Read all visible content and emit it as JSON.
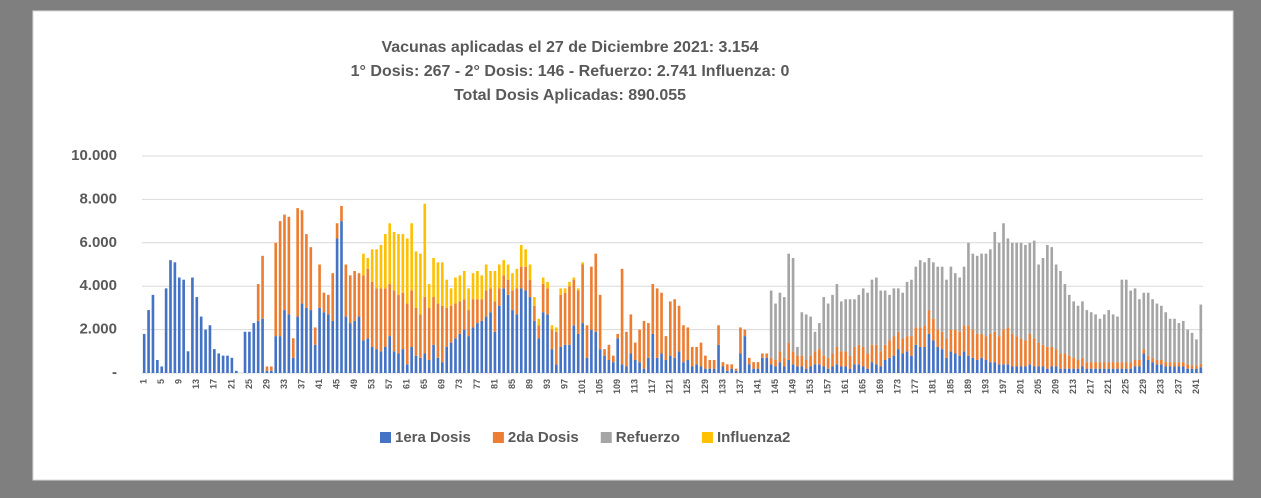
{
  "chart_data": {
    "type": "stacked_bar",
    "title_lines": [
      "Vacunas aplicadas el 27 de Diciembre 2021: 3.154",
      "1° Dosis: 267 - 2° Dosis: 146 - Refuerzo: 2.741 Influenza: 0",
      "Total Dosis Aplicadas: 890.055"
    ],
    "categories": [
      1,
      null,
      null,
      null,
      5,
      null,
      null,
      null,
      9,
      null,
      null,
      null,
      13,
      null,
      null,
      null,
      17,
      null,
      null,
      null,
      21,
      null,
      null,
      null,
      25,
      null,
      null,
      null,
      29,
      null,
      null,
      null,
      33,
      null,
      null,
      null,
      37,
      null,
      null,
      null,
      41,
      null,
      null,
      null,
      45,
      null,
      null,
      null,
      49,
      null,
      null,
      null,
      53,
      null,
      null,
      null,
      57,
      null,
      null,
      null,
      61,
      null,
      null,
      null,
      65,
      null,
      null,
      null,
      69,
      null,
      null,
      null,
      73,
      null,
      null,
      null,
      77,
      null,
      null,
      null,
      81,
      null,
      null,
      null,
      85,
      null,
      null,
      null,
      89,
      null,
      null,
      null,
      93,
      null,
      null,
      null,
      97,
      null,
      null,
      null,
      101,
      null,
      null,
      null,
      105,
      null,
      null,
      null,
      109,
      null,
      null,
      null,
      113,
      null,
      null,
      null,
      117,
      null,
      null,
      null,
      121,
      null,
      null,
      null,
      125,
      null,
      null,
      null,
      129,
      null,
      null,
      null,
      133,
      null,
      null,
      null,
      137,
      null,
      null,
      null,
      141,
      null,
      null,
      null,
      145,
      null,
      null,
      null,
      149,
      null,
      null,
      null,
      153,
      null,
      null,
      null,
      157,
      null,
      null,
      null,
      161,
      null,
      null,
      null,
      165,
      null,
      null,
      null,
      169,
      null,
      null,
      null,
      173,
      null,
      null,
      null,
      177,
      null,
      null,
      null,
      181,
      null,
      null,
      null,
      185,
      null,
      null,
      null,
      189,
      null,
      null,
      null,
      193,
      null,
      null,
      null,
      197,
      null,
      null,
      null,
      201,
      null,
      null,
      null,
      205,
      null,
      null,
      null,
      209,
      null,
      null,
      null,
      213,
      null,
      null,
      null,
      217,
      null,
      null,
      null,
      221,
      null,
      null,
      null,
      225,
      null,
      null,
      null,
      229,
      null,
      null,
      null,
      233,
      null,
      null,
      null,
      237,
      null,
      null,
      null,
      241,
      null
    ],
    "series": [
      {
        "name": "1era Dosis",
        "color": "#4472c4",
        "values": [
          1800,
          2900,
          3600,
          600,
          300,
          3900,
          5200,
          5100,
          4400,
          4300,
          1000,
          4400,
          3500,
          2600,
          2000,
          2200,
          1100,
          900,
          800,
          800,
          700,
          100,
          0,
          1900,
          1900,
          2300,
          2400,
          2500,
          100,
          100,
          1700,
          1700,
          2900,
          2700,
          700,
          2600,
          3200,
          3000,
          2900,
          1300,
          3000,
          2800,
          2700,
          2400,
          6200,
          7000,
          2600,
          2300,
          2400,
          2600,
          1500,
          1600,
          1200,
          1100,
          1000,
          1200,
          1700,
          1000,
          900,
          1100,
          400,
          1200,
          800,
          700,
          900,
          600,
          1300,
          700,
          500,
          1200,
          1400,
          1600,
          1800,
          2000,
          1700,
          2100,
          2300,
          2400,
          2600,
          2800,
          1900,
          3100,
          3900,
          3600,
          2900,
          2700,
          3900,
          3800,
          3500,
          2400,
          1600,
          2800,
          2700,
          1100,
          400,
          1200,
          1300,
          1300,
          2200,
          1800,
          2300,
          700,
          2000,
          1900,
          1100,
          800,
          600,
          500,
          1600,
          400,
          300,
          900,
          600,
          500,
          200,
          700,
          1800,
          700,
          900,
          600,
          800,
          700,
          1000,
          500,
          600,
          300,
          400,
          300,
          200,
          200,
          200,
          1300,
          300,
          100,
          200,
          100,
          900,
          1700,
          400,
          200,
          200,
          700,
          700,
          400,
          300,
          500,
          300,
          600,
          400,
          300,
          300,
          200,
          300,
          400,
          400,
          300,
          200,
          300,
          400,
          300,
          300,
          200,
          400,
          400,
          300,
          200,
          500,
          400,
          300,
          600,
          700,
          800,
          1100,
          900,
          1000,
          800,
          1300,
          1200,
          1200,
          1800,
          1500,
          1200,
          1100,
          700,
          1000,
          900,
          800,
          1000,
          800,
          700,
          600,
          700,
          600,
          500,
          500,
          400,
          400,
          400,
          300,
          300,
          300,
          300,
          400,
          300,
          300,
          300,
          200,
          300,
          300,
          200,
          200,
          200,
          200,
          200,
          300,
          200,
          200,
          200,
          200,
          200,
          200,
          200,
          200,
          200,
          200,
          200,
          300,
          300,
          900,
          600,
          500,
          400,
          400,
          300,
          300,
          300,
          300,
          300,
          200,
          200,
          200,
          267
        ]
      },
      {
        "name": "2da Dosis",
        "color": "#ed7d31",
        "values": [
          0,
          0,
          0,
          0,
          0,
          0,
          0,
          0,
          0,
          0,
          0,
          0,
          0,
          0,
          0,
          0,
          0,
          0,
          0,
          0,
          0,
          0,
          0,
          0,
          0,
          0,
          1700,
          2900,
          200,
          200,
          4300,
          5300,
          4400,
          4500,
          900,
          5000,
          4300,
          3400,
          2900,
          800,
          2000,
          900,
          900,
          2200,
          700,
          700,
          2400,
          2200,
          2300,
          2000,
          3000,
          3200,
          3000,
          2800,
          2900,
          2700,
          2400,
          2800,
          2700,
          2600,
          2800,
          2600,
          2200,
          2000,
          2600,
          2400,
          2200,
          2500,
          2600,
          1800,
          1700,
          1600,
          1500,
          1400,
          1200,
          1300,
          1100,
          1000,
          1200,
          1100,
          1400,
          800,
          600,
          700,
          900,
          1200,
          1000,
          1100,
          800,
          700,
          600,
          1300,
          1200,
          900,
          1500,
          2400,
          2400,
          2700,
          2100,
          2000,
          2700,
          1500,
          2900,
          3600,
          2500,
          300,
          700,
          300,
          200,
          4400,
          1600,
          1800,
          800,
          1500,
          2200,
          1600,
          2300,
          3200,
          2800,
          1100,
          2500,
          2700,
          2100,
          1700,
          1500,
          900,
          800,
          1100,
          600,
          400,
          400,
          900,
          200,
          300,
          200,
          100,
          1200,
          300,
          300,
          300,
          300,
          200,
          200,
          300,
          300,
          500,
          400,
          800,
          600,
          500,
          500,
          400,
          500,
          600,
          700,
          500,
          500,
          600,
          800,
          700,
          700,
          600,
          800,
          900,
          900,
          700,
          800,
          900,
          700,
          700,
          800,
          900,
          800,
          700,
          700,
          900,
          800,
          900,
          1000,
          1100,
          1000,
          800,
          800,
          900,
          1000,
          1100,
          1100,
          1200,
          1400,
          1300,
          1200,
          1100,
          1100,
          1300,
          1400,
          1300,
          1600,
          1700,
          1500,
          1400,
          1300,
          1200,
          1400,
          1300,
          1100,
          1000,
          1000,
          900,
          800,
          700,
          700,
          600,
          500,
          400,
          400,
          300,
          300,
          300,
          300,
          300,
          300,
          300,
          300,
          300,
          300,
          300,
          300,
          300,
          200,
          200,
          200,
          200,
          200,
          200,
          200,
          200,
          200,
          200,
          200,
          150,
          150,
          146
        ]
      },
      {
        "name": "Refuerzo",
        "color": "#a5a5a5",
        "values": [
          0,
          0,
          0,
          0,
          0,
          0,
          0,
          0,
          0,
          0,
          0,
          0,
          0,
          0,
          0,
          0,
          0,
          0,
          0,
          0,
          0,
          0,
          0,
          0,
          0,
          0,
          0,
          0,
          0,
          0,
          0,
          0,
          0,
          0,
          0,
          0,
          0,
          0,
          0,
          0,
          0,
          0,
          0,
          0,
          0,
          0,
          0,
          0,
          0,
          0,
          0,
          0,
          0,
          0,
          0,
          0,
          0,
          0,
          0,
          0,
          0,
          0,
          0,
          0,
          0,
          0,
          0,
          0,
          0,
          0,
          0,
          0,
          0,
          0,
          0,
          0,
          0,
          0,
          0,
          0,
          0,
          0,
          0,
          0,
          0,
          0,
          0,
          0,
          0,
          0,
          0,
          0,
          0,
          0,
          0,
          0,
          0,
          0,
          0,
          0,
          0,
          0,
          0,
          0,
          0,
          0,
          0,
          0,
          0,
          0,
          0,
          0,
          0,
          0,
          0,
          0,
          0,
          0,
          0,
          0,
          0,
          0,
          0,
          0,
          0,
          0,
          0,
          0,
          0,
          0,
          0,
          0,
          0,
          0,
          0,
          0,
          0,
          0,
          0,
          0,
          0,
          0,
          0,
          3100,
          2600,
          2700,
          2800,
          4100,
          4300,
          400,
          2000,
          2100,
          1800,
          900,
          1200,
          2700,
          2500,
          2700,
          2900,
          2300,
          2400,
          2600,
          2200,
          2300,
          2700,
          2800,
          3000,
          3100,
          2800,
          2500,
          2100,
          2200,
          2000,
          2100,
          2500,
          2600,
          2800,
          3100,
          2900,
          2400,
          2600,
          2900,
          3000,
          2700,
          2900,
          2600,
          2500,
          2700,
          3800,
          3500,
          3600,
          3700,
          3800,
          3900,
          4600,
          4300,
          4900,
          4100,
          4200,
          4300,
          4400,
          4400,
          4200,
          4500,
          3600,
          4000,
          4700,
          4600,
          3900,
          3800,
          3200,
          2800,
          2600,
          2500,
          2600,
          2400,
          2300,
          2200,
          2000,
          2200,
          2400,
          2200,
          2100,
          3800,
          3800,
          3300,
          3300,
          2800,
          2600,
          2900,
          2700,
          2600,
          2500,
          2300,
          2000,
          2000,
          1800,
          1900,
          1600,
          1500,
          1200,
          2741
        ]
      },
      {
        "name": "Influenza2",
        "color": "#ffc000",
        "values": [
          0,
          0,
          0,
          0,
          0,
          0,
          0,
          0,
          0,
          0,
          0,
          0,
          0,
          0,
          0,
          0,
          0,
          0,
          0,
          0,
          0,
          0,
          0,
          0,
          0,
          0,
          0,
          0,
          0,
          0,
          0,
          0,
          0,
          0,
          0,
          0,
          0,
          0,
          0,
          0,
          0,
          0,
          0,
          0,
          0,
          0,
          0,
          0,
          0,
          0,
          1000,
          500,
          1500,
          1800,
          2000,
          2500,
          2800,
          2700,
          2800,
          2700,
          3000,
          3100,
          2600,
          2800,
          4300,
          1100,
          1800,
          1900,
          2000,
          1300,
          800,
          1200,
          1200,
          1300,
          1000,
          1200,
          1300,
          1100,
          1200,
          800,
          1400,
          1100,
          700,
          700,
          800,
          900,
          1000,
          800,
          700,
          400,
          300,
          300,
          300,
          200,
          200,
          300,
          200,
          200,
          100,
          100,
          100,
          0,
          0,
          0,
          0,
          0,
          0,
          0,
          0,
          0,
          0,
          0,
          0,
          0,
          0,
          0,
          0,
          0,
          0,
          0,
          0,
          0,
          0,
          0,
          0,
          0,
          0,
          0,
          0,
          0,
          0,
          0,
          0,
          0,
          0,
          0,
          0,
          0,
          0,
          0,
          0,
          0,
          0,
          0,
          0,
          0,
          0,
          0,
          0,
          0,
          0,
          0,
          0,
          0,
          0,
          0,
          0,
          0,
          0,
          0,
          0,
          0,
          0,
          0,
          0,
          0,
          0,
          0,
          0,
          0,
          0,
          0,
          0,
          0,
          0,
          0,
          0,
          0,
          0,
          0,
          0,
          0,
          0,
          0,
          0,
          0,
          0,
          0,
          0,
          0,
          0,
          0,
          0,
          0,
          0,
          0,
          0,
          0,
          0,
          0,
          0,
          0,
          0,
          0,
          0,
          0,
          0,
          0,
          0,
          0,
          0,
          0,
          0,
          0,
          0,
          0,
          0,
          0,
          0,
          0,
          0,
          0,
          0,
          0,
          0,
          0,
          0,
          0,
          0,
          0,
          0,
          0,
          0,
          0,
          0,
          0,
          0,
          0,
          0,
          0,
          0,
          0
        ]
      }
    ],
    "ylim": [
      0,
      10000
    ],
    "yticks": [
      {
        "value": 0,
        "label": "-"
      },
      {
        "value": 2000,
        "label": "2.000"
      },
      {
        "value": 4000,
        "label": "4.000"
      },
      {
        "value": 6000,
        "label": "6.000"
      },
      {
        "value": 8000,
        "label": "8.000"
      },
      {
        "value": 10000,
        "label": "10.000"
      }
    ],
    "grid": true,
    "legend": "bottom"
  }
}
